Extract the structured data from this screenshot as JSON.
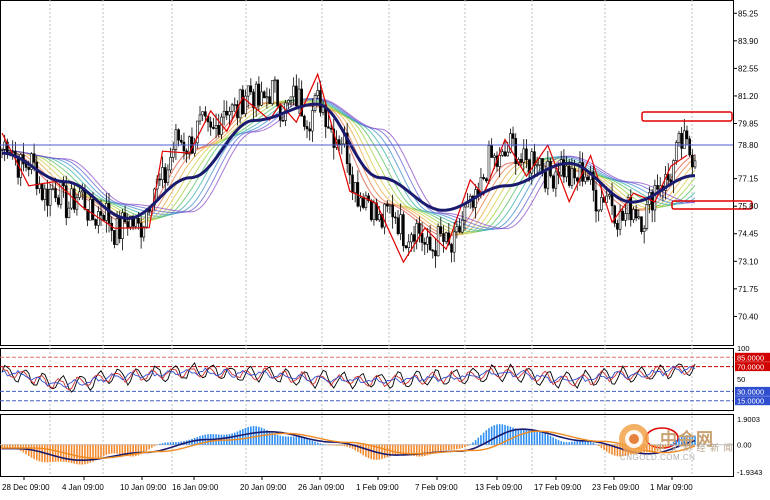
{
  "price_axis": {
    "ticks": [
      "85.25",
      "83.90",
      "82.55",
      "81.20",
      "79.85",
      "77.15",
      "75.80",
      "74.45",
      "73.10",
      "71.75",
      "70.40"
    ],
    "current_price": "78.80"
  },
  "rsi_axis": {
    "ticks": [
      "100",
      "85.0000",
      "70.0000",
      "50",
      "30.0000",
      "15.0000"
    ]
  },
  "macd_axis": {
    "ticks": [
      "1.9003",
      "0.00"
    ],
    "bottom_label": "-1.9343"
  },
  "time_axis": {
    "labels": [
      "28 Dec 09:00",
      "4 Jan 09:00",
      "10 Jan 09:00",
      "16 Jan 09:00",
      "20 Jan 09:00",
      "26 Jan 09:00",
      "1 Feb 09:00",
      "7 Feb 09:00",
      "13 Feb 09:00",
      "17 Feb 09:00",
      "23 Feb 09:00",
      "1 Mar 09:00"
    ]
  },
  "watermark": {
    "brand": "中金网",
    "tagline": "中 文 财 经 新 闻",
    "url": "CNGOLD.COM.CN"
  },
  "colors": {
    "background": "#ffffff",
    "grid": "#c0c0c0",
    "price_line": "#4b5bd6",
    "zigzag": "#e00000",
    "slow_ma": "#1a1a6e",
    "macd_positive": "#2f8ff2",
    "macd_negative": "#f28a2f",
    "annotation": "#e00000"
  },
  "chart_data": [
    {
      "type": "line",
      "title": "",
      "x": [
        "28 Dec",
        "4 Jan",
        "10 Jan",
        "16 Jan",
        "20 Jan",
        "26 Jan",
        "1 Feb",
        "7 Feb",
        "13 Feb",
        "17 Feb",
        "23 Feb",
        "1 Mar"
      ],
      "series": [
        {
          "values": [
            78.6,
            76.2,
            74.8,
            79.2,
            81.2,
            80.6,
            75.4,
            73.8,
            78.4,
            77.4,
            75.4,
            78.8
          ]
        },
        {
          "values": [
            78.4,
            77.0,
            75.2,
            77.2,
            80.0,
            80.8,
            77.2,
            75.6,
            76.8,
            77.9,
            76.0,
            77.3
          ]
        }
      ],
      "ylim": [
        69.0,
        85.9
      ]
    },
    {
      "type": "line",
      "title": "",
      "series": [
        {
          "values": [
            60,
            42,
            55,
            62,
            58,
            50,
            47,
            52,
            60,
            48,
            57,
            66
          ]
        }
      ],
      "ylim": [
        0,
        100
      ]
    },
    {
      "type": "bar",
      "title": "",
      "values": [
        -0.3,
        -1.2,
        -0.6,
        0.4,
        1.0,
        0.2,
        -0.8,
        -0.5,
        1.2,
        0.3,
        -0.7,
        0.5
      ],
      "ylim": [
        -1.9343,
        1.9003
      ]
    }
  ]
}
